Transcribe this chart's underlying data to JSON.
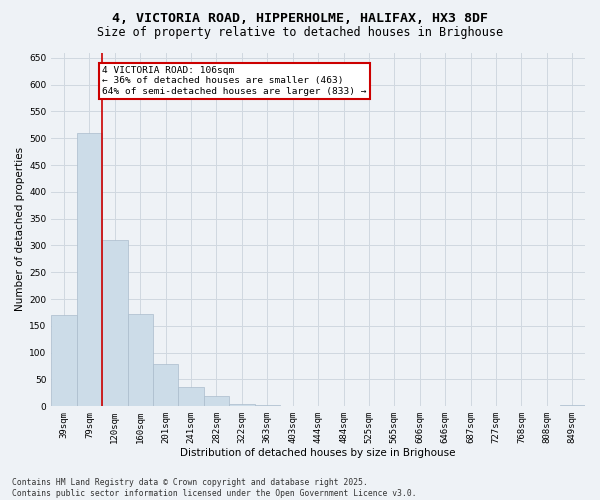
{
  "title_line1": "4, VICTORIA ROAD, HIPPERHOLME, HALIFAX, HX3 8DF",
  "title_line2": "Size of property relative to detached houses in Brighouse",
  "xlabel": "Distribution of detached houses by size in Brighouse",
  "ylabel": "Number of detached properties",
  "categories": [
    "39sqm",
    "79sqm",
    "120sqm",
    "160sqm",
    "201sqm",
    "241sqm",
    "282sqm",
    "322sqm",
    "363sqm",
    "403sqm",
    "444sqm",
    "484sqm",
    "525sqm",
    "565sqm",
    "606sqm",
    "646sqm",
    "687sqm",
    "727sqm",
    "768sqm",
    "808sqm",
    "849sqm"
  ],
  "values": [
    170,
    510,
    310,
    172,
    78,
    35,
    20,
    5,
    2,
    0,
    0,
    0,
    0,
    0,
    0,
    0,
    0,
    0,
    0,
    0,
    2
  ],
  "bar_color": "#ccdce8",
  "bar_edge_color": "#aabccc",
  "grid_color": "#d0d8e0",
  "background_color": "#eef2f6",
  "red_line_x": 1.5,
  "annotation_text": "4 VICTORIA ROAD: 106sqm\n← 36% of detached houses are smaller (463)\n64% of semi-detached houses are larger (833) →",
  "annotation_box_color": "#ffffff",
  "annotation_box_edge": "#cc0000",
  "ylim": [
    0,
    660
  ],
  "yticks": [
    0,
    50,
    100,
    150,
    200,
    250,
    300,
    350,
    400,
    450,
    500,
    550,
    600,
    650
  ],
  "footer_line1": "Contains HM Land Registry data © Crown copyright and database right 2025.",
  "footer_line2": "Contains public sector information licensed under the Open Government Licence v3.0.",
  "title1_fontsize": 9.5,
  "title2_fontsize": 8.5,
  "axis_label_fontsize": 7.5,
  "tick_fontsize": 6.5,
  "annotation_fontsize": 6.8,
  "footer_fontsize": 5.8
}
